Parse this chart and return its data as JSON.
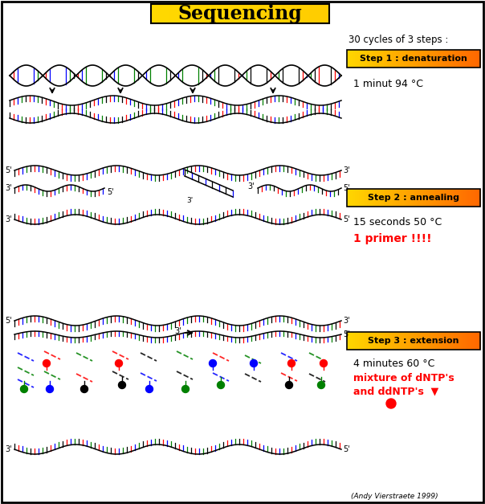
{
  "title": "Sequencing",
  "title_bg_left": "#FFD700",
  "title_bg_right": "#FFA500",
  "border_color": "#000000",
  "bg_color": "#FFFFFF",
  "step1_label": "Step 1 : denaturation",
  "step1_detail": "1 minut 94 °C",
  "step2_label": "Step 2 : annealing",
  "step2_detail1": "15 seconds 50 °C",
  "step2_detail2": "1 primer !!!!",
  "step3_label": "Step 3 : extension",
  "step3_detail1": "4 minutes 60 °C",
  "step3_detail2": "mixture of dNTP's",
  "step3_detail3": "and ddNTP's",
  "cycles_text": "30 cycles of 3 steps :",
  "credit": "(Andy Vierstraete 1999)",
  "red_text_color": "#FF0000",
  "black_text_color": "#000000",
  "bar_colors": [
    "#000000",
    "#FF0000",
    "#0000FF",
    "#008000"
  ]
}
